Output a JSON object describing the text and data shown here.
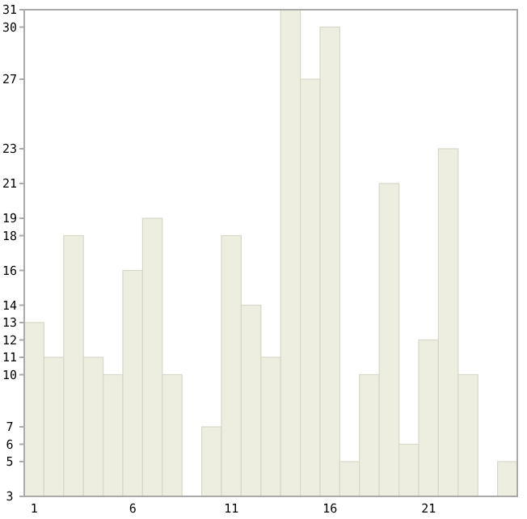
{
  "chart_data": {
    "type": "bar",
    "categories": [
      "1",
      null,
      null,
      null,
      null,
      "6",
      null,
      null,
      null,
      null,
      "11",
      null,
      null,
      null,
      null,
      "16",
      null,
      null,
      null,
      null,
      "21",
      null,
      null,
      null,
      null
    ],
    "values": [
      13,
      11,
      18,
      11,
      10,
      16,
      19,
      10,
      3,
      7,
      18,
      14,
      11,
      31,
      27,
      30,
      5,
      10,
      21,
      6,
      12,
      23,
      10,
      3,
      5
    ],
    "color": "#eeeee0",
    "ylim": [
      3,
      31
    ],
    "yticks": [
      3,
      5,
      6,
      7,
      10,
      11,
      12,
      13,
      14,
      16,
      18,
      19,
      21,
      23,
      27,
      30,
      31
    ],
    "grid": false
  }
}
